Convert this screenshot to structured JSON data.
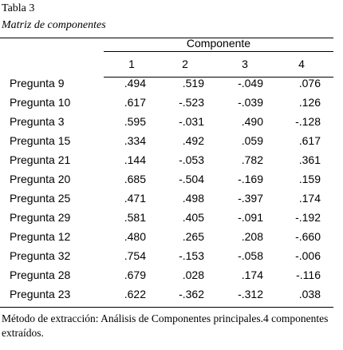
{
  "caption": {
    "number": "Tabla 3",
    "title": "Matriz de componentes"
  },
  "table": {
    "group_header": "Componente",
    "columns": [
      "1",
      "2",
      "3",
      "4"
    ],
    "rows": [
      [
        "Pregunta 9",
        ".494",
        ".519",
        "-.049",
        ".076"
      ],
      [
        "Pregunta 10",
        ".617",
        "-.523",
        "-.039",
        ".126"
      ],
      [
        "Pregunta 3",
        ".595",
        "-.031",
        ".490",
        "-.128"
      ],
      [
        "Pregunta 15",
        ".334",
        ".492",
        ".059",
        ".617"
      ],
      [
        "Pregunta 21",
        ".144",
        "-.053",
        ".782",
        ".361"
      ],
      [
        "Pregunta 20",
        ".685",
        "-.504",
        "-.169",
        ".159"
      ],
      [
        "Pregunta 25",
        ".471",
        ".498",
        "-.397",
        ".174"
      ],
      [
        "Pregunta 29",
        ".581",
        ".405",
        "-.091",
        "-.192"
      ],
      [
        "Pregunta 12",
        ".480",
        ".265",
        ".208",
        "-.660"
      ],
      [
        "Pregunta 32",
        ".754",
        "-.153",
        "-.058",
        "-.006"
      ],
      [
        "Pregunta 28",
        ".679",
        ".028",
        ".174",
        "-.116"
      ],
      [
        "Pregunta 23",
        ".622",
        "-.362",
        "-.312",
        ".038"
      ]
    ]
  },
  "footnote": "Método de extracción: Análisis de Componentes principales.4 componentes extraídos."
}
